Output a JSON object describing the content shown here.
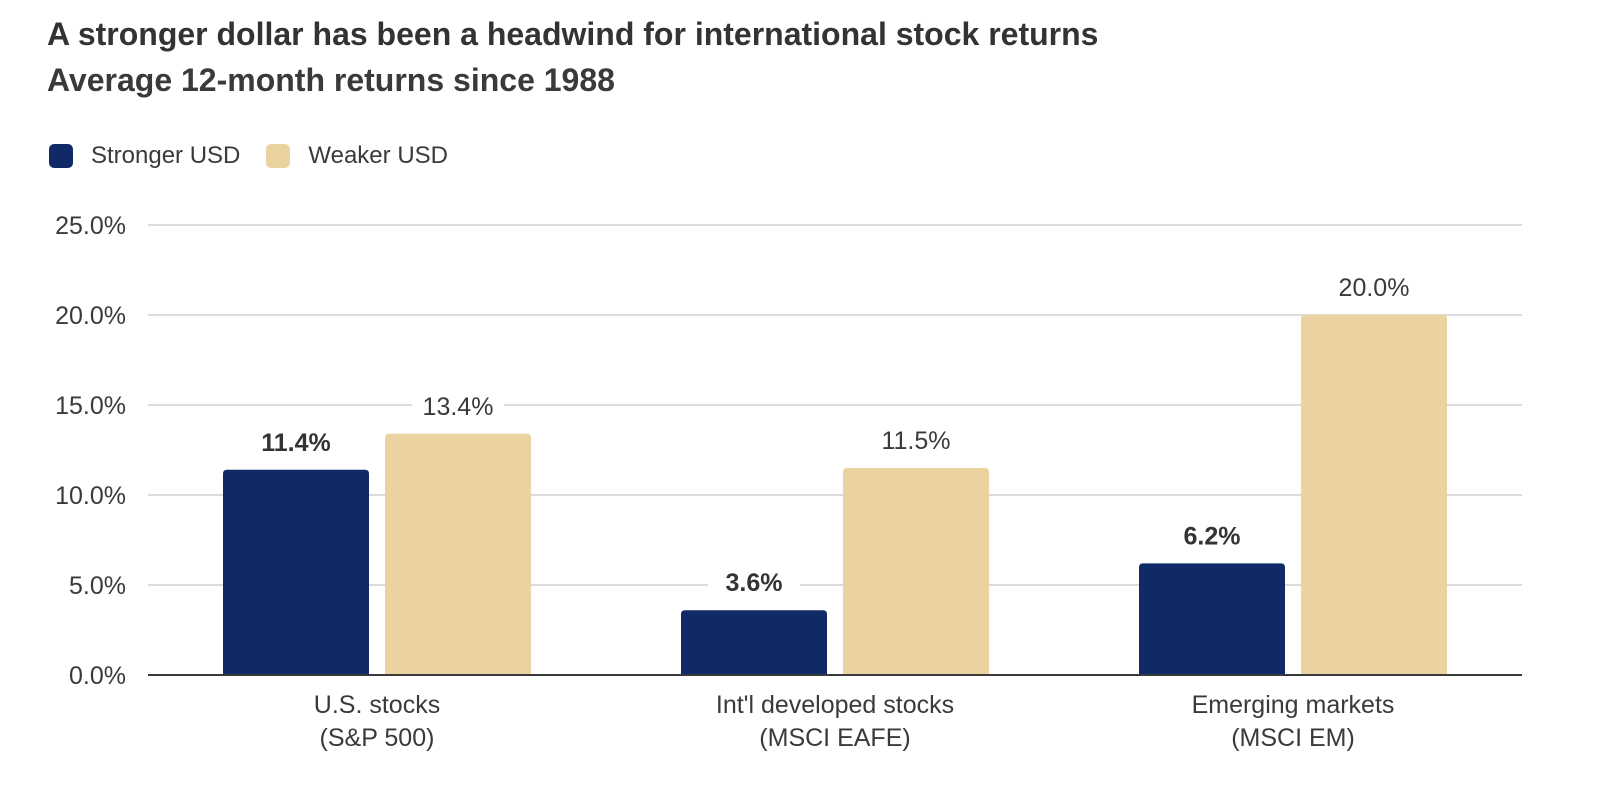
{
  "title": "A stronger dollar has been a headwind for international stock returns",
  "subtitle": "Average 12-month returns since 1988",
  "legend": [
    {
      "label": "Stronger USD",
      "color": "#0f2a66"
    },
    {
      "label": "Weaker USD",
      "color": "#ebd3a1"
    }
  ],
  "chart_data": {
    "type": "bar",
    "categories": [
      [
        "U.S. stocks",
        "(S&P 500)"
      ],
      [
        "Int'l developed stocks",
        "(MSCI EAFE)"
      ],
      [
        "Emerging markets",
        "(MSCI EM)"
      ]
    ],
    "series": [
      {
        "name": "Stronger USD",
        "values": [
          11.4,
          3.6,
          6.2
        ],
        "labels": [
          "11.4%",
          "3.6%",
          "6.2%"
        ],
        "color": "#0f2a66",
        "label_bold": true
      },
      {
        "name": "Weaker USD",
        "values": [
          13.4,
          11.5,
          20.0
        ],
        "labels": [
          "13.4%",
          "11.5%",
          "20.0%"
        ],
        "color": "#ebd3a1",
        "label_bold": false
      }
    ],
    "ylim": [
      0,
      25
    ],
    "yticks": [
      0,
      5,
      10,
      15,
      20,
      25
    ],
    "ytick_labels": [
      "0.0%",
      "5.0%",
      "10.0%",
      "15.0%",
      "20.0%",
      "25.0%"
    ],
    "grid": true,
    "legend_position": "top-left"
  }
}
